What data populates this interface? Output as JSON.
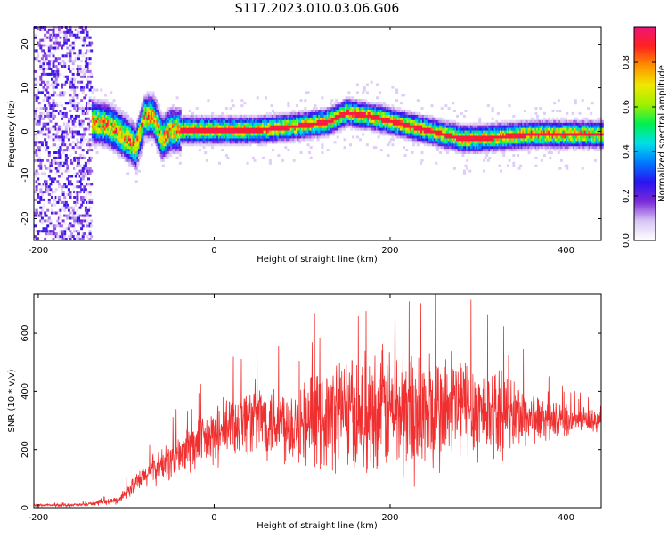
{
  "title": "S117.2023.010.03.06.G06",
  "chart_data": [
    {
      "type": "heatmap",
      "xlabel": "Height of straight line (km)",
      "ylabel": "Frequency (Hz)",
      "xlim": [
        -205,
        440
      ],
      "ylim": [
        -25,
        24
      ],
      "xticks": [
        -200,
        0,
        200,
        400
      ],
      "yticks": [
        -20,
        -10,
        0,
        10,
        20
      ],
      "colorbar": {
        "label": "Normalized spectral amplitude",
        "range": [
          0,
          0.96
        ],
        "ticks": [
          0.0,
          0.2,
          0.4,
          0.6,
          0.8
        ],
        "colormap": [
          "#ffffff",
          "#d9c6f5",
          "#7b2bd8",
          "#2a14f0",
          "#0078ff",
          "#00e0e8",
          "#00f050",
          "#a0f000",
          "#f0e800",
          "#ff9000",
          "#ff2020",
          "#f01478"
        ]
      },
      "ridge": {
        "x": [
          -140,
          -120,
          -100,
          -90,
          -80,
          -70,
          -60,
          -50,
          -40,
          0,
          50,
          100,
          130,
          150,
          180,
          200,
          230,
          260,
          280,
          300,
          330,
          360,
          400,
          440
        ],
        "y": [
          2,
          1,
          -2,
          -4,
          3,
          3,
          -2,
          0,
          0,
          0,
          0,
          1,
          2,
          4,
          3,
          2,
          0.5,
          -1,
          -2,
          -2,
          -1.5,
          -1,
          -1,
          -1
        ]
      }
    },
    {
      "type": "line",
      "xlabel": "Height of straight line (km)",
      "ylabel": "SNR (10 * v/v)",
      "xlim": [
        -205,
        440
      ],
      "ylim": [
        0,
        735
      ],
      "xticks": [
        -200,
        0,
        200,
        400
      ],
      "yticks": [
        0,
        200,
        400,
        600
      ],
      "series_color": "#f03030",
      "envelope": {
        "x": [
          -205,
          -150,
          -110,
          -90,
          -70,
          -50,
          -30,
          -10,
          10,
          30,
          50,
          70,
          90,
          110,
          130,
          145,
          160,
          180,
          200,
          220,
          240,
          260,
          280,
          300,
          320,
          340,
          360,
          380,
          400,
          420,
          440
        ],
        "mean": [
          8,
          10,
          25,
          80,
          130,
          160,
          200,
          230,
          260,
          300,
          310,
          300,
          290,
          300,
          310,
          340,
          320,
          330,
          340,
          330,
          320,
          330,
          350,
          340,
          330,
          320,
          310,
          300,
          300,
          300,
          295
        ],
        "amp": [
          5,
          6,
          15,
          40,
          60,
          80,
          100,
          110,
          130,
          140,
          150,
          160,
          170,
          180,
          200,
          250,
          230,
          240,
          260,
          280,
          260,
          250,
          230,
          210,
          180,
          150,
          110,
          80,
          60,
          50,
          45
        ]
      }
    }
  ]
}
